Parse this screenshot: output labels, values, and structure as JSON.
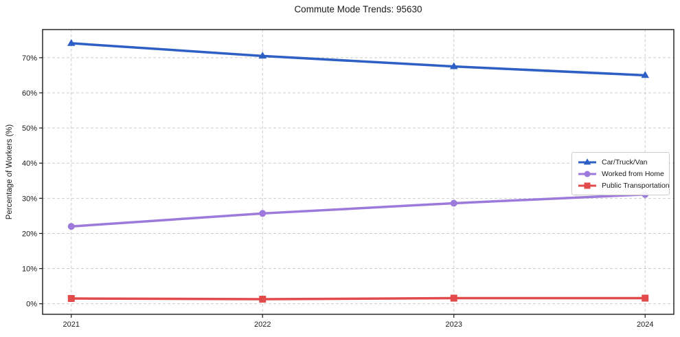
{
  "chart": {
    "title": "Commute Mode Trends: 95630",
    "ylabel": "Percentage of Workers (%)"
  },
  "chart_data": {
    "type": "line",
    "title": "Commute Mode Trends: 95630",
    "xlabel": "",
    "ylabel": "Percentage of Workers (%)",
    "categories": [
      "2021",
      "2022",
      "2023",
      "2024"
    ],
    "x": [
      2021,
      2022,
      2023,
      2024
    ],
    "series": [
      {
        "name": "Car/Truck/Van",
        "values": [
          74.1,
          70.5,
          67.5,
          65.0
        ],
        "color": "#2d5fc4",
        "marker": "triangle"
      },
      {
        "name": "Worked from Home",
        "values": [
          22.0,
          25.7,
          28.6,
          31.1
        ],
        "color": "#9c79db",
        "marker": "circle"
      },
      {
        "name": "Public Transportation",
        "values": [
          1.5,
          1.3,
          1.6,
          1.6
        ],
        "color": "#e14b4b",
        "marker": "square"
      }
    ],
    "yticks": [
      0,
      10,
      20,
      30,
      40,
      50,
      60,
      70
    ],
    "ytick_suffix": "%",
    "ylim": [
      -3,
      78
    ],
    "xlim": [
      2020.85,
      2024.15
    ],
    "grid": true,
    "grid_color": "#cccccc",
    "spine_color": "#1a1a1a",
    "legend_position": "center-right",
    "line_width": 3.5,
    "marker_size": 10
  }
}
